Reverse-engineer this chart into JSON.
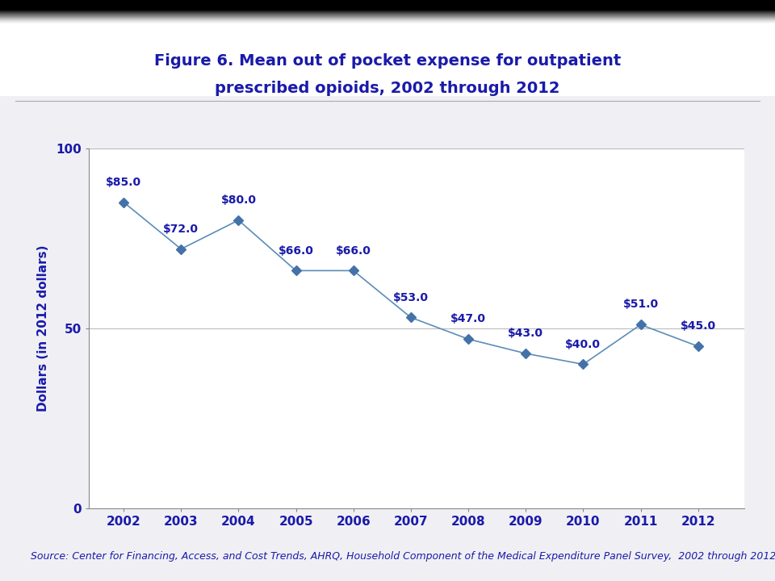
{
  "title_line1": "Figure 6. Mean out of pocket expense for outpatient",
  "title_line2": "prescribed opioids, 2002 through 2012",
  "title_color": "#1a1aaa",
  "ylabel": "Dollars (in 2012 dollars)",
  "years": [
    2002,
    2003,
    2004,
    2005,
    2006,
    2007,
    2008,
    2009,
    2010,
    2011,
    2012
  ],
  "values": [
    85.0,
    72.0,
    80.0,
    66.0,
    66.0,
    53.0,
    47.0,
    43.0,
    40.0,
    51.0,
    45.0
  ],
  "labels": [
    "$85.0",
    "$72.0",
    "$80.0",
    "$66.0",
    "$66.0",
    "$53.0",
    "$47.0",
    "$43.0",
    "$40.0",
    "$51.0",
    "$45.0"
  ],
  "line_color": "#5B8DB8",
  "marker_color": "#4472A8",
  "label_color": "#1a1aaa",
  "ylim": [
    0,
    100
  ],
  "yticks": [
    0,
    50,
    100
  ],
  "bg_color": "#F0F0F4",
  "header_bg_top": "#C8C8CC",
  "header_bg_bot": "#E8E8EC",
  "chart_bg": "#FFFFFF",
  "separator_color": "#AAAAAA",
  "grid_color": "#BBBBBB",
  "tick_label_color": "#1a1aaa",
  "title_fontsize": 14,
  "label_fontsize": 10,
  "axis_fontsize": 11,
  "ylabel_fontsize": 11,
  "source_fontsize": 9,
  "source_text": "Source: Center for Financing, Access, and Cost Trends, AHRQ, Household Component of the Medical Expenditure Panel Survey,  2002 through 2012"
}
